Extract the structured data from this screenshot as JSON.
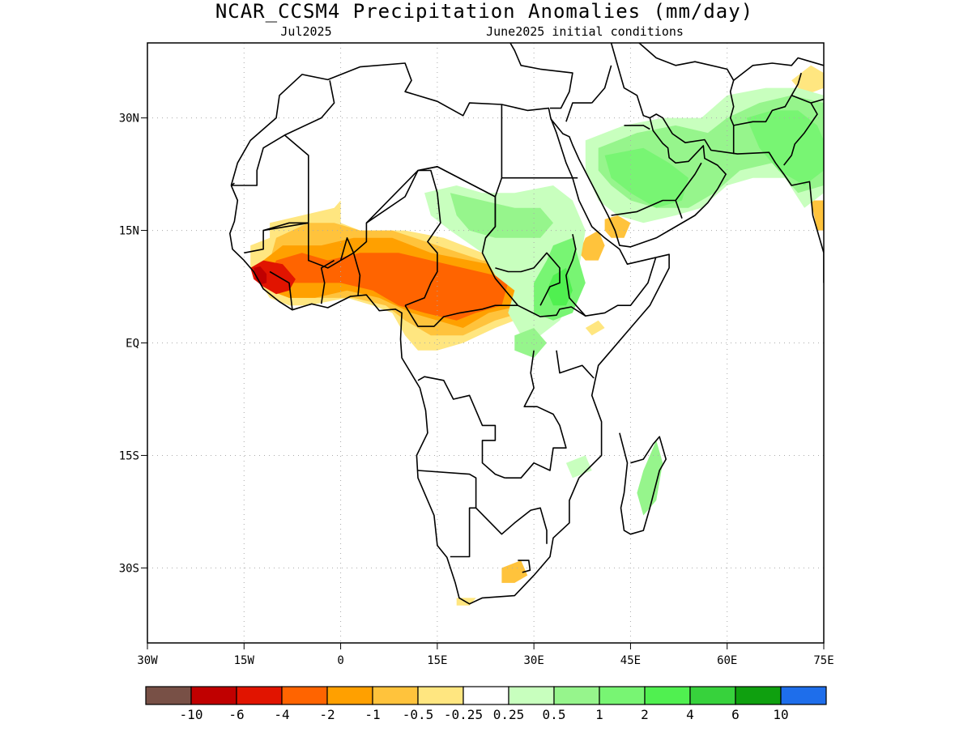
{
  "header": {
    "title": "NCAR_CCSM4 Precipitation Anomalies (mm/day)",
    "subtitle_left": "Jul2025",
    "subtitle_right": "June2025 initial conditions"
  },
  "map": {
    "lon_range": [
      -30,
      75
    ],
    "lat_range": [
      -40,
      40
    ],
    "x_ticks": [
      {
        "value": -30,
        "label": "30W"
      },
      {
        "value": -15,
        "label": "15W"
      },
      {
        "value": 0,
        "label": "0"
      },
      {
        "value": 15,
        "label": "15E"
      },
      {
        "value": 30,
        "label": "30E"
      },
      {
        "value": 45,
        "label": "45E"
      },
      {
        "value": 60,
        "label": "60E"
      },
      {
        "value": 75,
        "label": "75E"
      }
    ],
    "y_ticks": [
      {
        "value": 30,
        "label": "30N"
      },
      {
        "value": 15,
        "label": "15N"
      },
      {
        "value": 0,
        "label": "EQ"
      },
      {
        "value": -15,
        "label": "15S"
      },
      {
        "value": -30,
        "label": "30S"
      }
    ],
    "grid": true,
    "anomaly_regions": [
      {
        "name": "sahel-dry-outer",
        "level": "-0.25 to -0.5",
        "color": "#ffe680",
        "points": [
          [
            -11,
            14
          ],
          [
            -11,
            16
          ],
          [
            -6,
            17
          ],
          [
            -1,
            18
          ],
          [
            0,
            19
          ],
          [
            0,
            16
          ],
          [
            3,
            15
          ],
          [
            10,
            15
          ],
          [
            16,
            14
          ],
          [
            22,
            12
          ],
          [
            27,
            12
          ],
          [
            31,
            10
          ],
          [
            30,
            6
          ],
          [
            27,
            3
          ],
          [
            24,
            2
          ],
          [
            19,
            0
          ],
          [
            15,
            -1
          ],
          [
            12,
            -1
          ],
          [
            10,
            1
          ],
          [
            8,
            4
          ],
          [
            5,
            5
          ],
          [
            1,
            6
          ],
          [
            -5,
            5
          ],
          [
            -8,
            5
          ],
          [
            -11,
            6
          ],
          [
            -14,
            10
          ],
          [
            -14,
            13
          ]
        ]
      },
      {
        "name": "sahel-dry-mid",
        "level": "-0.5 to -1",
        "color": "#ffc33c",
        "points": [
          [
            -11,
            11
          ],
          [
            -10,
            14
          ],
          [
            -5,
            16
          ],
          [
            -1,
            16
          ],
          [
            3,
            15
          ],
          [
            8,
            15
          ],
          [
            15,
            13
          ],
          [
            22,
            11
          ],
          [
            28,
            11
          ],
          [
            30,
            8
          ],
          [
            28,
            4
          ],
          [
            24,
            3
          ],
          [
            19,
            1
          ],
          [
            14,
            1
          ],
          [
            10,
            3
          ],
          [
            7,
            5
          ],
          [
            2,
            6
          ],
          [
            -4,
            6
          ],
          [
            -8,
            6
          ],
          [
            -11,
            7
          ],
          [
            -13,
            9
          ]
        ]
      },
      {
        "name": "sahel-dry-core",
        "level": "-1 to -2",
        "color": "#ffa000",
        "points": [
          [
            -12,
            11
          ],
          [
            -9,
            13
          ],
          [
            -3,
            13
          ],
          [
            2,
            14
          ],
          [
            8,
            14
          ],
          [
            14,
            12
          ],
          [
            20,
            11
          ],
          [
            26,
            10
          ],
          [
            29,
            9
          ],
          [
            28,
            5
          ],
          [
            23,
            4
          ],
          [
            19,
            2
          ],
          [
            15,
            3
          ],
          [
            11,
            4
          ],
          [
            6,
            6
          ],
          [
            1,
            7
          ],
          [
            -4,
            6
          ],
          [
            -8,
            6
          ],
          [
            -11,
            7
          ],
          [
            -13,
            9
          ]
        ]
      },
      {
        "name": "sahel-dry-strong",
        "level": "-2 to -4",
        "color": "#ff6400",
        "points": [
          [
            -10,
            11
          ],
          [
            -6,
            12
          ],
          [
            -2,
            11
          ],
          [
            3,
            12
          ],
          [
            9,
            12
          ],
          [
            14,
            11
          ],
          [
            19,
            10
          ],
          [
            24,
            9
          ],
          [
            26,
            8
          ],
          [
            25,
            5
          ],
          [
            21,
            4
          ],
          [
            18,
            3
          ],
          [
            13,
            4
          ],
          [
            9,
            5
          ],
          [
            5,
            7
          ],
          [
            0,
            8
          ],
          [
            -4,
            8
          ],
          [
            -8,
            8
          ],
          [
            -11,
            9
          ]
        ]
      },
      {
        "name": "guinea-dry-severe",
        "level": "-4 to -6",
        "color": "#e11400",
        "points": [
          [
            -14,
            10
          ],
          [
            -12,
            11
          ],
          [
            -9,
            10.5
          ],
          [
            -7,
            8.5
          ],
          [
            -8,
            7
          ],
          [
            -10,
            6.5
          ],
          [
            -12,
            7.5
          ],
          [
            -13.5,
            8.5
          ]
        ]
      },
      {
        "name": "sierra-leone-dry-extreme",
        "level": "-6 to -10",
        "color": "#c00000",
        "points": [
          [
            -13.5,
            10
          ],
          [
            -12.5,
            10.2
          ],
          [
            -11.5,
            9.2
          ],
          [
            -11.5,
            8
          ],
          [
            -12.5,
            7.8
          ],
          [
            -13.2,
            8.5
          ]
        ]
      },
      {
        "name": "yemen-dry",
        "level": "-0.5 to -1",
        "color": "#ffc33c",
        "points": [
          [
            41,
            16.5
          ],
          [
            43,
            17
          ],
          [
            45,
            16
          ],
          [
            44,
            14
          ],
          [
            42,
            14
          ],
          [
            41,
            15
          ]
        ]
      },
      {
        "name": "eritrea-dry",
        "level": "-0.5 to -1",
        "color": "#ffc33c",
        "points": [
          [
            38,
            14
          ],
          [
            40,
            15
          ],
          [
            41,
            13
          ],
          [
            40,
            11
          ],
          [
            38,
            11
          ],
          [
            37,
            12
          ]
        ]
      },
      {
        "name": "kenya-coast-dry",
        "level": "-0.25 to -0.5",
        "color": "#ffe680",
        "points": [
          [
            38,
            2
          ],
          [
            40,
            3
          ],
          [
            41,
            2
          ],
          [
            39,
            1
          ]
        ]
      },
      {
        "name": "south-africa-dry",
        "level": "-0.5 to -1",
        "color": "#ffc33c",
        "points": [
          [
            25,
            -30
          ],
          [
            28,
            -29
          ],
          [
            29,
            -31
          ],
          [
            27,
            -32
          ],
          [
            25,
            -32
          ]
        ]
      },
      {
        "name": "south-africa-dry-tip",
        "level": "-0.25 to -0.5",
        "color": "#ffe680",
        "points": [
          [
            18,
            -34
          ],
          [
            21,
            -34
          ],
          [
            20,
            -35
          ],
          [
            18,
            -35
          ]
        ]
      },
      {
        "name": "india-dry",
        "level": "-0.5 to -1",
        "color": "#ffc33c",
        "points": [
          [
            73,
            19
          ],
          [
            75,
            19
          ],
          [
            75,
            15
          ],
          [
            74,
            15
          ]
        ]
      },
      {
        "name": "himalaya-dry",
        "level": "-0.25 to -0.5",
        "color": "#ffe680",
        "points": [
          [
            70,
            35
          ],
          [
            73,
            37
          ],
          [
            75,
            36
          ],
          [
            75,
            34
          ],
          [
            72,
            33
          ]
        ]
      },
      {
        "name": "sudan-wet-light",
        "level": "0.25 to 0.5",
        "color": "#c8ffbe",
        "points": [
          [
            13,
            20
          ],
          [
            18,
            21
          ],
          [
            22,
            20
          ],
          [
            27,
            20
          ],
          [
            33,
            21
          ],
          [
            36,
            19
          ],
          [
            38,
            15
          ],
          [
            37,
            10
          ],
          [
            36,
            6
          ],
          [
            34,
            3
          ],
          [
            31,
            1
          ],
          [
            28,
            1
          ],
          [
            26,
            4
          ],
          [
            27,
            7
          ],
          [
            24,
            9
          ],
          [
            22,
            12
          ],
          [
            17,
            15
          ],
          [
            14,
            17
          ]
        ]
      },
      {
        "name": "sudan-wet",
        "level": "0.5 to 1",
        "color": "#96f58c",
        "points": [
          [
            17,
            20
          ],
          [
            22,
            19
          ],
          [
            27,
            18
          ],
          [
            31,
            18
          ],
          [
            33,
            16
          ],
          [
            31,
            14
          ],
          [
            27,
            14
          ],
          [
            24,
            14
          ],
          [
            20,
            15
          ],
          [
            18,
            17
          ]
        ]
      },
      {
        "name": "ethiopia-wet",
        "level": "1 to 2",
        "color": "#78f573",
        "points": [
          [
            33,
            13
          ],
          [
            36,
            14
          ],
          [
            37,
            11
          ],
          [
            38,
            8
          ],
          [
            36,
            4
          ],
          [
            33,
            3
          ],
          [
            30,
            4
          ],
          [
            30,
            8
          ],
          [
            32,
            11
          ]
        ]
      },
      {
        "name": "ethiopia-wet-core",
        "level": "2 to 4",
        "color": "#50f050",
        "points": [
          [
            33,
            9
          ],
          [
            35,
            10
          ],
          [
            36,
            7
          ],
          [
            35,
            5
          ],
          [
            33,
            5
          ],
          [
            32,
            7
          ]
        ]
      },
      {
        "name": "east-africa-wet",
        "level": "0.5 to 1",
        "color": "#96f58c",
        "points": [
          [
            27,
            1
          ],
          [
            30,
            2
          ],
          [
            32,
            0
          ],
          [
            30,
            -2
          ],
          [
            27,
            -1
          ]
        ]
      },
      {
        "name": "arabia-wet-light",
        "level": "0.25 to 0.5",
        "color": "#c8ffbe",
        "points": [
          [
            38,
            27
          ],
          [
            44,
            29
          ],
          [
            50,
            30
          ],
          [
            56,
            30
          ],
          [
            60,
            33
          ],
          [
            66,
            34
          ],
          [
            71,
            34
          ],
          [
            75,
            33
          ],
          [
            75,
            20
          ],
          [
            72,
            18
          ],
          [
            69,
            22
          ],
          [
            64,
            22
          ],
          [
            60,
            21
          ],
          [
            56,
            18
          ],
          [
            52,
            17
          ],
          [
            47,
            16
          ],
          [
            43,
            17
          ],
          [
            40,
            19
          ],
          [
            38,
            23
          ]
        ]
      },
      {
        "name": "arabia-wet",
        "level": "0.5 to 1",
        "color": "#96f58c",
        "points": [
          [
            40,
            26
          ],
          [
            46,
            28
          ],
          [
            52,
            29
          ],
          [
            57,
            28
          ],
          [
            60,
            30
          ],
          [
            65,
            32
          ],
          [
            70,
            33
          ],
          [
            75,
            32
          ],
          [
            75,
            21
          ],
          [
            71,
            20
          ],
          [
            67,
            24
          ],
          [
            62,
            23
          ],
          [
            58,
            20
          ],
          [
            54,
            18
          ],
          [
            49,
            18
          ],
          [
            45,
            19
          ],
          [
            42,
            21
          ],
          [
            40,
            23
          ]
        ]
      },
      {
        "name": "arabia-wet-core",
        "level": "1 to 2",
        "color": "#78f573",
        "points": [
          [
            41,
            25
          ],
          [
            47,
            26
          ],
          [
            51,
            24
          ],
          [
            54,
            22
          ],
          [
            53,
            19
          ],
          [
            49,
            18
          ],
          [
            45,
            20
          ],
          [
            42,
            22
          ]
        ]
      },
      {
        "name": "pakistan-wet",
        "level": "1 to 2",
        "color": "#78f573",
        "points": [
          [
            63,
            30
          ],
          [
            67,
            31
          ],
          [
            71,
            31
          ],
          [
            74,
            29
          ],
          [
            75,
            27
          ],
          [
            75,
            23
          ],
          [
            72,
            21
          ],
          [
            68,
            23
          ],
          [
            65,
            26
          ]
        ]
      },
      {
        "name": "madagascar-wet",
        "level": "0.5 to 1",
        "color": "#96f58c",
        "points": [
          [
            48,
            -15
          ],
          [
            49,
            -13
          ],
          [
            50,
            -16
          ],
          [
            49,
            -21
          ],
          [
            47,
            -23
          ],
          [
            46,
            -20
          ],
          [
            47,
            -17
          ]
        ]
      },
      {
        "name": "mozambique-wet",
        "level": "0.25 to 0.5",
        "color": "#c8ffbe",
        "points": [
          [
            35,
            -16
          ],
          [
            38,
            -15
          ],
          [
            39,
            -17
          ],
          [
            36,
            -18
          ]
        ]
      }
    ]
  },
  "legend": {
    "colors": [
      "#785046",
      "#c00000",
      "#e11400",
      "#ff6400",
      "#ffa000",
      "#ffc33c",
      "#ffe680",
      "#ffffff",
      "#c8ffbe",
      "#96f58c",
      "#78f573",
      "#50f050",
      "#37d23c",
      "#0fa00f",
      "#1e6eeb"
    ],
    "labels": [
      "-10",
      "-6",
      "-4",
      "-2",
      "-1",
      "-0.5",
      "-0.25",
      "0.25",
      "0.5",
      "1",
      "2",
      "4",
      "6",
      "10"
    ]
  }
}
